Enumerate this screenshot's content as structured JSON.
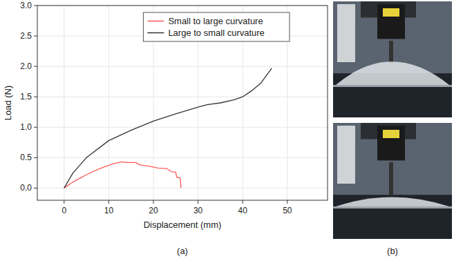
{
  "chart_data": {
    "type": "line",
    "x_label": "Displacement (mm)",
    "y_label": "Load (N)",
    "xlim": [
      -6,
      59
    ],
    "ylim": [
      -0.2,
      3.0
    ],
    "xticks": [
      0,
      10,
      20,
      30,
      40,
      50
    ],
    "yticks": [
      {
        "value": 0,
        "label": "0.0"
      },
      {
        "value": 0.5,
        "label": "0.5"
      },
      {
        "value": 1,
        "label": "1.0"
      },
      {
        "value": 1.5,
        "label": "1.5"
      },
      {
        "value": 2,
        "label": "2.0"
      },
      {
        "value": 2.5,
        "label": "2.5"
      },
      {
        "value": 3,
        "label": "3.0"
      }
    ],
    "grid": true,
    "legend": "upper right",
    "series": [
      {
        "name": "Small to large curvature",
        "color": "#ff5a5a",
        "x": [
          0,
          2,
          5,
          8,
          11,
          13,
          14,
          16,
          17,
          19,
          21,
          23,
          24,
          25,
          25.2,
          26,
          26.2
        ],
        "values": [
          0,
          0.1,
          0.22,
          0.32,
          0.4,
          0.43,
          0.42,
          0.42,
          0.38,
          0.36,
          0.33,
          0.32,
          0.27,
          0.26,
          0.18,
          0.17,
          0
        ]
      },
      {
        "name": "Large to small curvature",
        "color": "#333333",
        "x": [
          0,
          2,
          5,
          10,
          15,
          20,
          25,
          30,
          32,
          35,
          38,
          40,
          42,
          44,
          46.5
        ],
        "values": [
          0,
          0.25,
          0.5,
          0.78,
          0.95,
          1.1,
          1.22,
          1.33,
          1.37,
          1.4,
          1.45,
          1.5,
          1.6,
          1.72,
          1.97
        ]
      }
    ]
  },
  "captions": {
    "a": "(a)",
    "b": "(b)"
  }
}
